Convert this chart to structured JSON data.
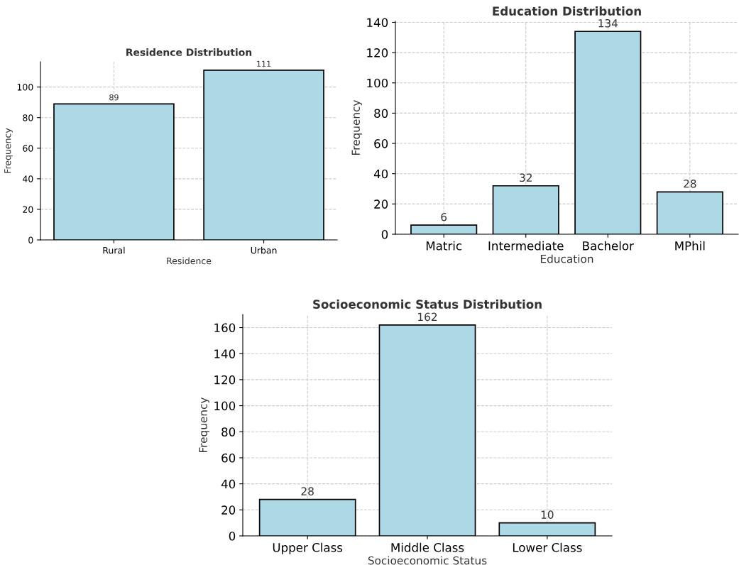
{
  "chart_data": [
    {
      "type": "bar",
      "title": "Residence Distribution",
      "xlabel": "Residence",
      "ylabel": "Frequency",
      "categories": [
        "Rural",
        "Urban"
      ],
      "values": [
        89,
        111
      ],
      "color": "#add8e6",
      "ylim": [
        0,
        116.55
      ],
      "yticks": [
        0,
        20,
        40,
        60,
        80,
        100
      ],
      "grid": true,
      "data_labels": true
    },
    {
      "type": "bar",
      "title": "Education Distribution",
      "xlabel": "Education",
      "ylabel": "Frequency",
      "categories": [
        "Matric",
        "Intermediate",
        "Bachelor",
        "MPhil"
      ],
      "values": [
        6,
        32,
        134,
        28
      ],
      "color": "#add8e6",
      "ylim": [
        0,
        140.7
      ],
      "yticks": [
        0,
        20,
        40,
        60,
        80,
        100,
        120,
        140
      ],
      "grid": true,
      "data_labels": true
    },
    {
      "type": "bar",
      "title": "Socioeconomic Status Distribution",
      "xlabel": "Socioeconomic Status",
      "ylabel": "Frequency",
      "categories": [
        "Upper Class",
        "Middle Class",
        "Lower Class"
      ],
      "values": [
        28,
        162,
        10
      ],
      "color": "#add8e6",
      "ylim": [
        0,
        170.1
      ],
      "yticks": [
        0,
        20,
        40,
        60,
        80,
        100,
        120,
        140,
        160
      ],
      "grid": true,
      "data_labels": true
    }
  ]
}
